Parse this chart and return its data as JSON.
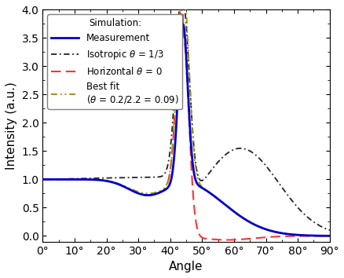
{
  "title": "",
  "xlabel": "Angle",
  "ylabel": "Intensity (a.u.)",
  "xlim": [
    0,
    90
  ],
  "ylim": [
    -0.1,
    4.0
  ],
  "yticks": [
    0.0,
    0.5,
    1.0,
    1.5,
    2.0,
    2.5,
    3.0,
    3.5,
    4.0
  ],
  "xticks": [
    0,
    10,
    20,
    30,
    40,
    50,
    60,
    70,
    80,
    90
  ],
  "xtick_labels": [
    "0°",
    "10°",
    "20°",
    "30°",
    "40°",
    "50°",
    "60°",
    "70°",
    "80°",
    "90°"
  ],
  "colors": {
    "measurement": "#0000CC",
    "isotropic": "#222222",
    "horizontal": "#FF3333",
    "best_fit": "#999900"
  },
  "legend": {
    "measurement": "Measurement",
    "simulation_header": "Simulation:",
    "isotropic": "Isotropic $\\theta$ = 1/3",
    "horizontal": "Horizontal $\\theta$ = 0",
    "best_fit": "Best fit",
    "best_fit_sub": "($\\theta$ = 0.2/2.2 = 0.09)"
  },
  "figsize": [
    4.39,
    3.54
  ],
  "dpi": 100
}
